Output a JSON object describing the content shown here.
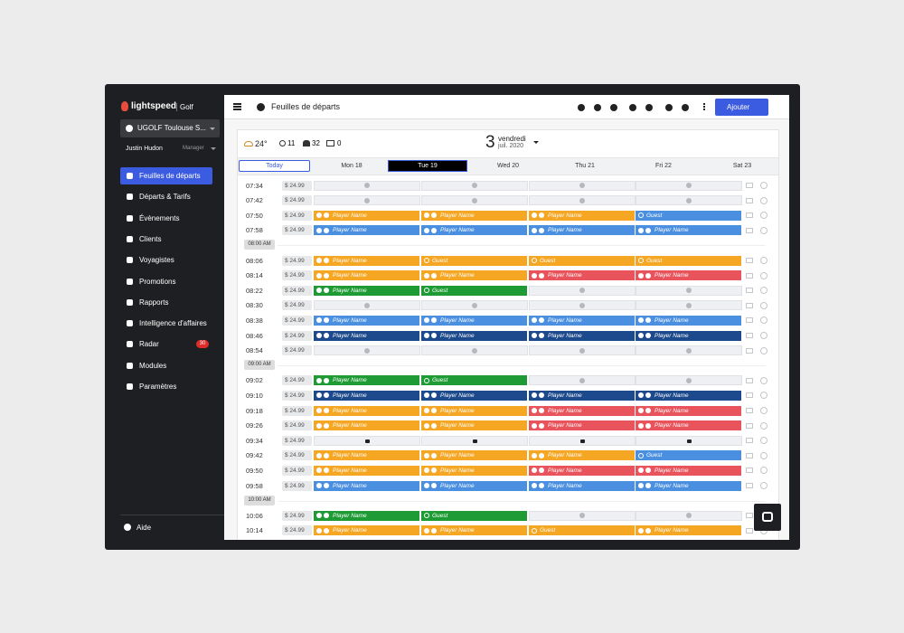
{
  "sidebar": {
    "brand": "lightspeed",
    "product": "Golf",
    "course": "UGOLF Toulouse S...",
    "user": "Justin Hudon",
    "role": "Manager",
    "nav": [
      {
        "label": "Feuilles de départs"
      },
      {
        "label": "Départs & Tarifs"
      },
      {
        "label": "Évènements"
      },
      {
        "label": "Clients"
      },
      {
        "label": "Voyagistes"
      },
      {
        "label": "Promotions"
      },
      {
        "label": "Rapports"
      },
      {
        "label": "Intelligence d'affaires"
      },
      {
        "label": "Radar",
        "badge": "30"
      },
      {
        "label": "Modules"
      },
      {
        "label": "Paramètres"
      }
    ],
    "footer": "Aide"
  },
  "topbar": {
    "title": "Feuilles de départs",
    "add_button": "Ajouter"
  },
  "weather": {
    "temperature": "24°",
    "players": "11",
    "groups": "32",
    "carts": "0"
  },
  "date": {
    "day": "3",
    "weekday": "vendredi",
    "month": "juil. 2020"
  },
  "days": {
    "today": "Today",
    "list": [
      "Mon 18",
      "Tue 19",
      "Wed 20",
      "Thu 21",
      "Fri 22",
      "Sat 23"
    ],
    "selected": 1
  },
  "rows": [
    {
      "time": "07:34",
      "price": "$ 24.99",
      "slots": [
        null,
        null,
        null,
        null
      ]
    },
    {
      "time": "07:42",
      "price": "$ 24.99",
      "slots": [
        null,
        null,
        null,
        null
      ]
    },
    {
      "time": "07:50",
      "price": "$ 24.99",
      "slots": [
        {
          "label": "Player Name",
          "color": "#f5a623"
        },
        {
          "label": "Player Name",
          "color": "#f5a623"
        },
        {
          "label": "Player Name",
          "color": "#f5a623"
        },
        {
          "label": "Guest",
          "color": "#4a8fe0"
        }
      ]
    },
    {
      "time": "07:58",
      "price": "$ 24.99",
      "slots": [
        {
          "label": "Player Name",
          "color": "#4a8fe0"
        },
        {
          "label": "Player Name",
          "color": "#4a8fe0"
        },
        {
          "label": "Player Name",
          "color": "#4a8fe0"
        },
        {
          "label": "Player Name",
          "color": "#4a8fe0"
        }
      ]
    },
    {
      "separator": "08:00 AM"
    },
    {
      "time": "08:06",
      "price": "$ 24.99",
      "slots": [
        {
          "label": "Player Name",
          "color": "#f5a623"
        },
        {
          "label": "Guest",
          "color": "#f5a623"
        },
        {
          "label": "Guest",
          "color": "#f5a623"
        },
        {
          "label": "Guest",
          "color": "#f5a623"
        }
      ]
    },
    {
      "time": "08:14",
      "price": "$ 24.99",
      "slots": [
        {
          "label": "Player Name",
          "color": "#f5a623"
        },
        {
          "label": "Player Name",
          "color": "#f5a623"
        },
        {
          "label": "Player Name",
          "color": "#e9545c"
        },
        {
          "label": "Player Name",
          "color": "#e9545c"
        }
      ]
    },
    {
      "time": "08:22",
      "price": "$ 24.99",
      "slots": [
        {
          "label": "Player Name",
          "color": "#1e9b34"
        },
        {
          "label": "Guest",
          "color": "#1e9b34"
        },
        null,
        null
      ]
    },
    {
      "time": "08:30",
      "price": "$ 24.99",
      "slots": [
        null,
        null,
        null,
        null
      ]
    },
    {
      "time": "08:38",
      "price": "$ 24.99",
      "slots": [
        {
          "label": "Player Name",
          "color": "#4a8fe0"
        },
        {
          "label": "Player Name",
          "color": "#4a8fe0"
        },
        {
          "label": "Player Name",
          "color": "#4a8fe0"
        },
        {
          "label": "Player Name",
          "color": "#4a8fe0"
        }
      ]
    },
    {
      "time": "08:46",
      "price": "$ 24.99",
      "slots": [
        {
          "label": "Player Name",
          "color": "#1d4a8c"
        },
        {
          "label": "Player Name",
          "color": "#1d4a8c"
        },
        {
          "label": "Player Name",
          "color": "#1d4a8c"
        },
        {
          "label": "Player Name",
          "color": "#1d4a8c"
        }
      ]
    },
    {
      "time": "08:54",
      "price": "$ 24.99",
      "slots": [
        null,
        null,
        null,
        null
      ]
    },
    {
      "separator": "09:00 AM"
    },
    {
      "time": "09:02",
      "price": "$ 24.99",
      "slots": [
        {
          "label": "Player Name",
          "color": "#1e9b34"
        },
        {
          "label": "Guest",
          "color": "#1e9b34"
        },
        null,
        null
      ]
    },
    {
      "time": "09:10",
      "price": "$ 24.99",
      "slots": [
        {
          "label": "Player Name",
          "color": "#1d4a8c"
        },
        {
          "label": "Player Name",
          "color": "#1d4a8c"
        },
        {
          "label": "Player Name",
          "color": "#1d4a8c"
        },
        {
          "label": "Player Name",
          "color": "#1d4a8c"
        }
      ]
    },
    {
      "time": "09:18",
      "price": "$ 24.99",
      "slots": [
        {
          "label": "Player Name",
          "color": "#f5a623"
        },
        {
          "label": "Player Name",
          "color": "#f5a623"
        },
        {
          "label": "Player Name",
          "color": "#e9545c"
        },
        {
          "label": "Player Name",
          "color": "#e9545c"
        }
      ]
    },
    {
      "time": "09:26",
      "price": "$ 24.99",
      "slots": [
        {
          "label": "Player Name",
          "color": "#f5a623"
        },
        {
          "label": "Player Name",
          "color": "#f5a623"
        },
        {
          "label": "Player Name",
          "color": "#e9545c"
        },
        {
          "label": "Player Name",
          "color": "#e9545c"
        }
      ]
    },
    {
      "time": "09:34",
      "price": "$ 24.99",
      "slots": [
        {
          "locked": true
        },
        {
          "locked": true
        },
        {
          "locked": true
        },
        {
          "locked": true
        }
      ]
    },
    {
      "time": "09:42",
      "price": "$ 24.99",
      "slots": [
        {
          "label": "Player Name",
          "color": "#f5a623"
        },
        {
          "label": "Player Name",
          "color": "#f5a623"
        },
        {
          "label": "Player Name",
          "color": "#f5a623"
        },
        {
          "label": "Guest",
          "color": "#4a8fe0"
        }
      ]
    },
    {
      "time": "09:50",
      "price": "$ 24.99",
      "slots": [
        {
          "label": "Player Name",
          "color": "#f5a623"
        },
        {
          "label": "Player Name",
          "color": "#f5a623"
        },
        {
          "label": "Player Name",
          "color": "#e9545c"
        },
        {
          "label": "Player Name",
          "color": "#e9545c"
        }
      ]
    },
    {
      "time": "09:58",
      "price": "$ 24.99",
      "slots": [
        {
          "label": "Player Name",
          "color": "#4a8fe0"
        },
        {
          "label": "Player Name",
          "color": "#4a8fe0"
        },
        {
          "label": "Player Name",
          "color": "#4a8fe0"
        },
        {
          "label": "Player Name",
          "color": "#4a8fe0"
        }
      ]
    },
    {
      "separator": "10:00 AM"
    },
    {
      "time": "10:06",
      "price": "$ 24.99",
      "slots": [
        {
          "label": "Player Name",
          "color": "#1e9b34"
        },
        {
          "label": "Guest",
          "color": "#1e9b34"
        },
        null,
        null
      ]
    },
    {
      "time": "10:14",
      "price": "$ 24.99",
      "slots": [
        {
          "label": "Player Name",
          "color": "#f5a623"
        },
        {
          "label": "Player Name",
          "color": "#f5a623"
        },
        {
          "label": "Guest",
          "color": "#f5a623"
        },
        {
          "label": "Player Name",
          "color": "#f5a623"
        }
      ]
    }
  ]
}
